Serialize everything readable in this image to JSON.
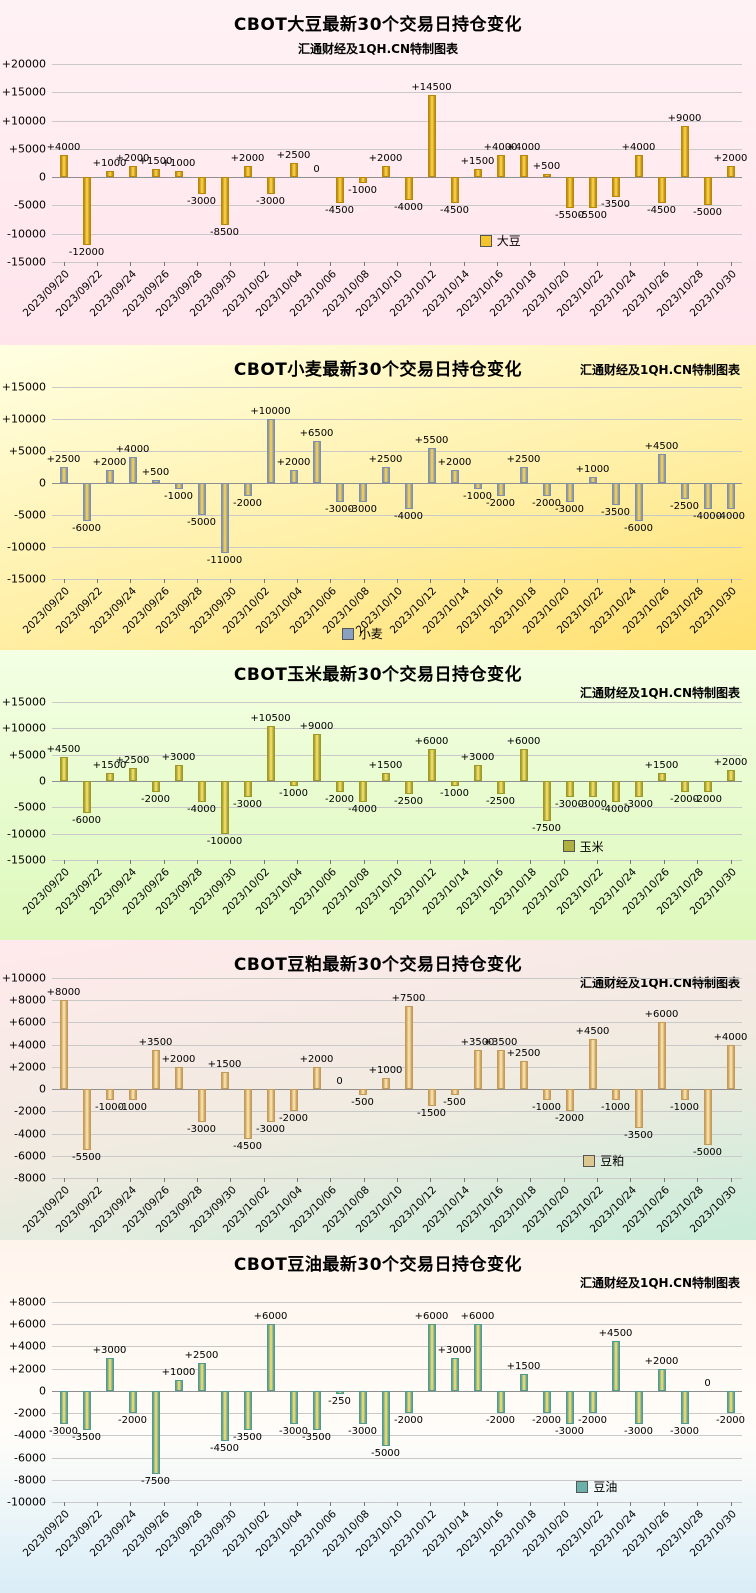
{
  "chart_data": [
    {
      "type": "bar",
      "title": "CBOT大豆最新30个交易日持仓变化",
      "subtitle": "汇通财经及1QH.CN特制图表",
      "legend_label": "大豆",
      "y_axis": {
        "max": 20000,
        "min": -15000,
        "step": 5000
      },
      "x_tick_labels": [
        "2023/09/20",
        "2023/09/22",
        "2023/09/24",
        "2023/09/26",
        "2023/09/28",
        "2023/09/30",
        "2023/10/02",
        "2023/10/04",
        "2023/10/06",
        "2023/10/08",
        "2023/10/10",
        "2023/10/12",
        "2023/10/14",
        "2023/10/16",
        "2023/10/18",
        "2023/10/20",
        "2023/10/22",
        "2023/10/24",
        "2023/10/26",
        "2023/10/28",
        "2023/10/30"
      ],
      "values": [
        4000,
        -12000,
        1000,
        2000,
        1500,
        1000,
        -3000,
        -8500,
        2000,
        -3000,
        2500,
        0,
        -4500,
        -1000,
        2000,
        -4000,
        14500,
        -4500,
        1500,
        4000,
        4000,
        500,
        -5500,
        -5500,
        -3500,
        4000,
        -4500,
        9000,
        -5000,
        2000
      ],
      "colors": {
        "bar_edge": "#b8860b",
        "bar_fill": "#ffd74d",
        "legend_swatch": "#f5c42c"
      }
    },
    {
      "type": "bar",
      "title": "CBOT小麦最新30个交易日持仓变化",
      "subtitle": "汇通财经及1QH.CN特制图表",
      "legend_label": "小麦",
      "y_axis": {
        "max": 15000,
        "min": -15000,
        "step": 5000
      },
      "x_tick_labels": [
        "2023/09/20",
        "2023/09/22",
        "2023/09/24",
        "2023/09/26",
        "2023/09/28",
        "2023/09/30",
        "2023/10/02",
        "2023/10/04",
        "2023/10/06",
        "2023/10/08",
        "2023/10/10",
        "2023/10/12",
        "2023/10/14",
        "2023/10/16",
        "2023/10/18",
        "2023/10/20",
        "2023/10/22",
        "2023/10/24",
        "2023/10/26",
        "2023/10/28",
        "2023/10/30"
      ],
      "values": [
        2500,
        -6000,
        2000,
        4000,
        500,
        -1000,
        -5000,
        -11000,
        -2000,
        10000,
        2000,
        6500,
        -3000,
        -3000,
        2500,
        -4000,
        5500,
        2000,
        -1000,
        -2000,
        2500,
        -2000,
        -3000,
        1000,
        -3500,
        -6000,
        4500,
        -2500,
        -4000,
        -4000
      ],
      "colors": {
        "bar_edge": "#7d8fae",
        "bar_fill": "#ffd74d",
        "legend_swatch": "#8aa0c0"
      }
    },
    {
      "type": "bar",
      "title": "CBOT玉米最新30个交易日持仓变化",
      "subtitle": "汇通财经及1QH.CN特制图表",
      "legend_label": "玉米",
      "y_axis": {
        "max": 15000,
        "min": -15000,
        "step": 5000
      },
      "x_tick_labels": [
        "2023/09/20",
        "2023/09/22",
        "2023/09/24",
        "2023/09/26",
        "2023/09/28",
        "2023/09/30",
        "2023/10/02",
        "2023/10/04",
        "2023/10/06",
        "2023/10/08",
        "2023/10/10",
        "2023/10/12",
        "2023/10/14",
        "2023/10/16",
        "2023/10/18",
        "2023/10/20",
        "2023/10/22",
        "2023/10/24",
        "2023/10/26",
        "2023/10/28",
        "2023/10/30"
      ],
      "values": [
        4500,
        -6000,
        1500,
        2500,
        -2000,
        3000,
        -4000,
        -10000,
        -3000,
        10500,
        -1000,
        9000,
        -2000,
        -4000,
        1500,
        -2500,
        6000,
        -1000,
        3000,
        -2500,
        6000,
        -7500,
        -3000,
        -3000,
        -4000,
        -3000,
        1500,
        -2000,
        -2000,
        2000
      ],
      "colors": {
        "bar_edge": "#9a9a28",
        "bar_fill": "#ffe26e",
        "legend_swatch": "#b0b040"
      }
    },
    {
      "type": "bar",
      "title": "CBOT豆粕最新30个交易日持仓变化",
      "subtitle": "汇通财经及1QH.CN特制图表",
      "legend_label": "豆粕",
      "y_axis": {
        "max": 10000,
        "min": -8000,
        "step": 2000
      },
      "x_tick_labels": [
        "2023/09/20",
        "2023/09/22",
        "2023/09/24",
        "2023/09/26",
        "2023/09/28",
        "2023/09/30",
        "2023/10/02",
        "2023/10/04",
        "2023/10/06",
        "2023/10/08",
        "2023/10/10",
        "2023/10/12",
        "2023/10/14",
        "2023/10/16",
        "2023/10/18",
        "2023/10/20",
        "2023/10/22",
        "2023/10/24",
        "2023/10/26",
        "2023/10/28",
        "2023/10/30"
      ],
      "values": [
        8000,
        -5500,
        -1000,
        -1000,
        3500,
        2000,
        -3000,
        1500,
        -4500,
        -3000,
        -2000,
        2000,
        0,
        -500,
        1000,
        7500,
        -1500,
        -500,
        3500,
        3500,
        2500,
        -1000,
        -2000,
        4500,
        -1000,
        -3500,
        6000,
        -1000,
        -5000,
        4000
      ],
      "colors": {
        "bar_edge": "#c49a5a",
        "bar_fill": "#ffe9b0",
        "legend_swatch": "#dcc88e"
      }
    },
    {
      "type": "bar",
      "title": "CBOT豆油最新30个交易日持仓变化",
      "subtitle": "汇通财经及1QH.CN特制图表",
      "legend_label": "豆油",
      "y_axis": {
        "max": 8000,
        "min": -10000,
        "step": 2000
      },
      "x_tick_labels": [
        "2023/09/20",
        "2023/09/22",
        "2023/09/24",
        "2023/09/26",
        "2023/09/28",
        "2023/09/30",
        "2023/10/02",
        "2023/10/04",
        "2023/10/06",
        "2023/10/08",
        "2023/10/10",
        "2023/10/12",
        "2023/10/14",
        "2023/10/16",
        "2023/10/18",
        "2023/10/20",
        "2023/10/22",
        "2023/10/24",
        "2023/10/26",
        "2023/10/28",
        "2023/10/30"
      ],
      "values": [
        -3000,
        -3500,
        3000,
        -2000,
        -7500,
        1000,
        2500,
        -4500,
        -3500,
        6000,
        -3000,
        -3500,
        -250,
        -3000,
        -5000,
        -2000,
        6000,
        3000,
        6000,
        -2000,
        1500,
        -2000,
        -3000,
        -2000,
        4500,
        -3000,
        2000,
        -3000,
        0,
        -2000
      ],
      "colors": {
        "bar_edge": "#4f9a92",
        "bar_fill": "#ffe26e",
        "legend_swatch": "#6cb1a9"
      }
    }
  ]
}
